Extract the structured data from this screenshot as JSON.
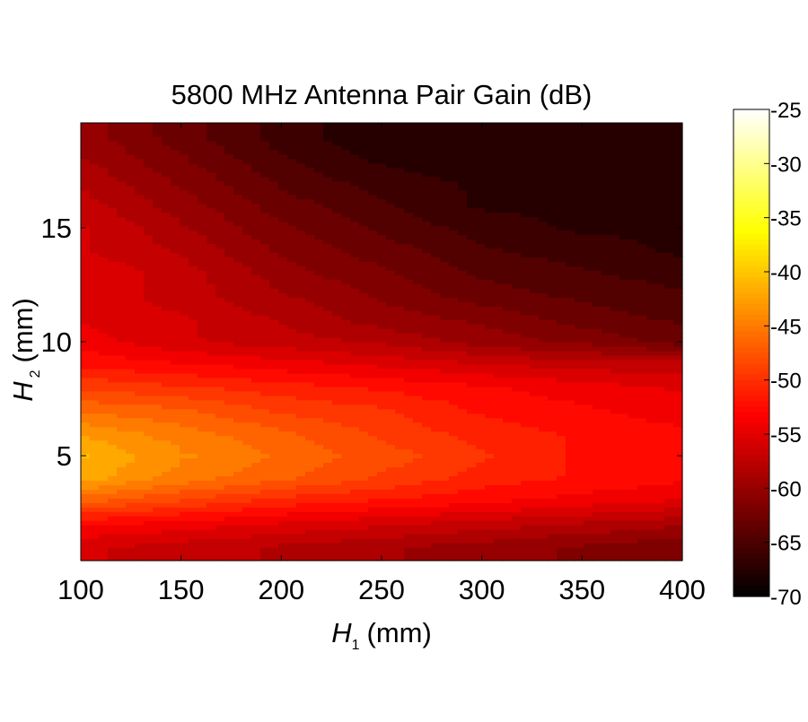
{
  "chart_data": {
    "type": "heatmap",
    "title": "5800 MHz Antenna Pair Gain (dB)",
    "xlabel": {
      "symbol": "H",
      "sub": "1",
      "unit": "(mm)"
    },
    "ylabel": {
      "symbol": "H",
      "sub": "2",
      "unit": "(mm)"
    },
    "xlim": [
      100,
      400
    ],
    "ylim": [
      0.4,
      19.6
    ],
    "clim": [
      -70,
      -25
    ],
    "colormap": "hot",
    "x_ticks": [
      100,
      150,
      200,
      250,
      300,
      350,
      400
    ],
    "y_ticks": [
      5,
      10,
      15
    ],
    "colorbar_ticks": [
      -25,
      -30,
      -35,
      -40,
      -45,
      -50,
      -55,
      -60,
      -65,
      -70
    ],
    "x": [
      100,
      150,
      200,
      250,
      300,
      350,
      400
    ],
    "y": [
      1,
      2,
      3,
      4,
      5,
      6,
      7,
      8,
      9,
      10,
      11,
      12,
      13,
      14,
      15,
      16,
      17,
      18,
      19
    ],
    "z": [
      [
        -56,
        -57,
        -58,
        -59,
        -60,
        -61,
        -62
      ],
      [
        -53,
        -54,
        -55,
        -56,
        -57,
        -58,
        -59
      ],
      [
        -47,
        -49,
        -51,
        -52,
        -53,
        -54,
        -55
      ],
      [
        -42,
        -45,
        -47,
        -49,
        -51,
        -52,
        -53
      ],
      [
        -41,
        -44,
        -46,
        -48,
        -50,
        -52,
        -53
      ],
      [
        -43,
        -45,
        -47,
        -49,
        -51,
        -52,
        -53
      ],
      [
        -46,
        -47,
        -49,
        -50,
        -52,
        -53,
        -54
      ],
      [
        -49,
        -50,
        -51,
        -52,
        -53,
        -54,
        -55
      ],
      [
        -52,
        -53,
        -54,
        -55,
        -56,
        -57,
        -57
      ],
      [
        -54,
        -56,
        -57,
        -58,
        -60,
        -61,
        -63
      ],
      [
        -55,
        -56,
        -58,
        -60,
        -61,
        -63,
        -64
      ],
      [
        -55,
        -57,
        -59,
        -61,
        -63,
        -64,
        -65
      ],
      [
        -55,
        -57,
        -60,
        -62,
        -64,
        -65,
        -66
      ],
      [
        -56,
        -58,
        -61,
        -63,
        -65,
        -66,
        -67
      ],
      [
        -56,
        -59,
        -62,
        -64,
        -66,
        -67,
        -67
      ],
      [
        -57,
        -60,
        -63,
        -65,
        -67,
        -67,
        -68
      ],
      [
        -58,
        -61,
        -64,
        -66,
        -67,
        -68,
        -68
      ],
      [
        -59,
        -62,
        -65,
        -67,
        -68,
        -68,
        -68
      ],
      [
        -60,
        -63,
        -66,
        -68,
        -68,
        -68,
        -68
      ]
    ]
  }
}
